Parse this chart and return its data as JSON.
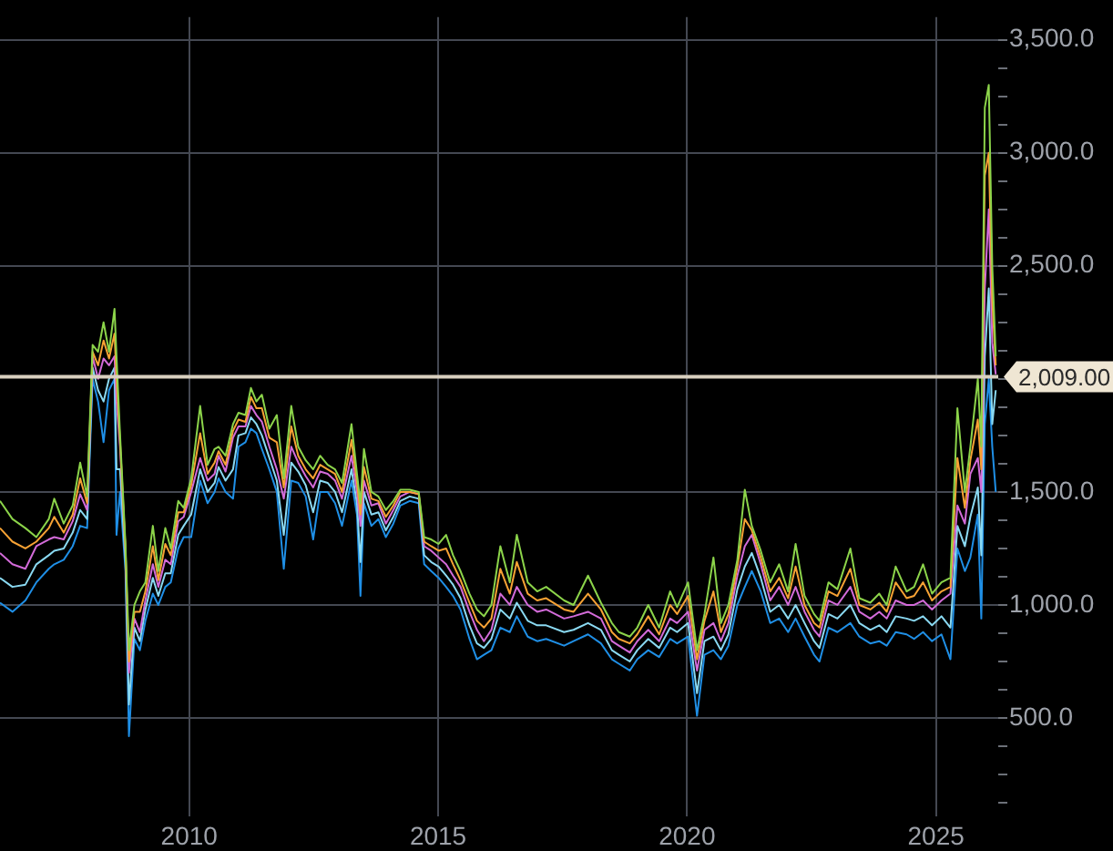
{
  "chart_data": {
    "type": "line",
    "x": [
      2006.2,
      2006.45,
      2006.71,
      2006.93,
      2007.18,
      2007.29,
      2007.48,
      2007.66,
      2007.81,
      2007.95,
      2008.06,
      2008.17,
      2008.28,
      2008.39,
      2008.5,
      2008.54,
      2008.61,
      2008.72,
      2008.79,
      2008.9,
      2009.01,
      2009.12,
      2009.27,
      2009.38,
      2009.52,
      2009.63,
      2009.78,
      2009.89,
      2010.04,
      2010.22,
      2010.37,
      2010.51,
      2010.59,
      2010.73,
      2010.88,
      2010.99,
      2011.13,
      2011.24,
      2011.35,
      2011.46,
      2011.61,
      2011.76,
      2011.9,
      2012.05,
      2012.19,
      2012.34,
      2012.49,
      2012.63,
      2012.78,
      2012.93,
      2013.07,
      2013.26,
      2013.37,
      2013.44,
      2013.51,
      2013.66,
      2013.8,
      2013.95,
      2014.1,
      2014.24,
      2014.43,
      2014.61,
      2014.72,
      2014.86,
      2015.01,
      2015.16,
      2015.3,
      2015.45,
      2015.63,
      2015.78,
      2015.92,
      2016.07,
      2016.25,
      2016.44,
      2016.58,
      2016.8,
      2016.99,
      2017.17,
      2017.53,
      2017.72,
      2018.01,
      2018.27,
      2018.49,
      2018.63,
      2018.85,
      2019.0,
      2019.22,
      2019.44,
      2019.66,
      2019.8,
      2020.02,
      2020.2,
      2020.35,
      2020.53,
      2020.68,
      2020.83,
      2021.01,
      2021.16,
      2021.3,
      2021.48,
      2021.67,
      2021.85,
      2022.03,
      2022.18,
      2022.36,
      2022.55,
      2022.66,
      2022.84,
      2023.02,
      2023.28,
      2023.46,
      2023.68,
      2023.86,
      2024.01,
      2024.19,
      2024.41,
      2024.56,
      2024.74,
      2024.92,
      2025.11,
      2025.29,
      2025.43,
      2025.58,
      2025.69,
      2025.84,
      2025.91,
      2025.98,
      2026.06,
      2026.13,
      2026.2
    ],
    "series": [
      {
        "color": "#8cd44a",
        "values": [
          1460,
          1380,
          1340,
          1300,
          1380,
          1470,
          1360,
          1440,
          1630,
          1480,
          2150,
          2120,
          2250,
          2120,
          2310,
          2100,
          1760,
          1270,
          800,
          1000,
          1060,
          1100,
          1350,
          1150,
          1340,
          1250,
          1460,
          1430,
          1560,
          1880,
          1620,
          1690,
          1700,
          1660,
          1800,
          1850,
          1840,
          1960,
          1900,
          1930,
          1780,
          1840,
          1560,
          1880,
          1700,
          1640,
          1600,
          1660,
          1620,
          1600,
          1540,
          1800,
          1580,
          1450,
          1690,
          1500,
          1480,
          1420,
          1460,
          1510,
          1510,
          1500,
          1300,
          1290,
          1270,
          1310,
          1220,
          1150,
          1050,
          980,
          950,
          1000,
          1260,
          1100,
          1310,
          1100,
          1060,
          1080,
          1020,
          1000,
          1130,
          1010,
          920,
          880,
          860,
          900,
          1000,
          900,
          1060,
          990,
          1100,
          800,
          960,
          1210,
          920,
          1000,
          1200,
          1510,
          1350,
          1240,
          1100,
          1180,
          1060,
          1270,
          1040,
          960,
          930,
          1100,
          1070,
          1250,
          1030,
          1010,
          1050,
          1000,
          1170,
          1060,
          1080,
          1180,
          1050,
          1100,
          1120,
          1870,
          1500,
          1700,
          2000,
          1700,
          3200,
          3300,
          2500,
          2100
        ]
      },
      {
        "color": "#f7a234",
        "values": [
          1340,
          1280,
          1250,
          1280,
          1340,
          1390,
          1320,
          1400,
          1560,
          1450,
          2120,
          2060,
          2170,
          2090,
          2200,
          2000,
          1730,
          1250,
          750,
          970,
          970,
          1060,
          1260,
          1110,
          1270,
          1220,
          1410,
          1410,
          1530,
          1760,
          1580,
          1630,
          1680,
          1620,
          1770,
          1820,
          1810,
          1920,
          1870,
          1870,
          1740,
          1720,
          1520,
          1790,
          1660,
          1600,
          1560,
          1620,
          1600,
          1580,
          1500,
          1730,
          1540,
          1400,
          1610,
          1470,
          1460,
          1390,
          1440,
          1500,
          1500,
          1490,
          1280,
          1260,
          1240,
          1250,
          1180,
          1110,
          1010,
          930,
          900,
          940,
          1160,
          1050,
          1190,
          1050,
          1020,
          1030,
          980,
          970,
          1050,
          980,
          880,
          850,
          830,
          870,
          950,
          870,
          1000,
          960,
          1040,
          760,
          930,
          1060,
          880,
          960,
          1170,
          1380,
          1330,
          1210,
          1060,
          1120,
          1030,
          1170,
          1000,
          920,
          900,
          1060,
          1040,
          1160,
          1000,
          980,
          1010,
          970,
          1100,
          1030,
          1040,
          1100,
          1020,
          1060,
          1080,
          1650,
          1430,
          1640,
          1820,
          1600,
          2900,
          3000,
          2350,
          2060
        ]
      },
      {
        "color": "#d36bd9",
        "values": [
          1230,
          1180,
          1160,
          1260,
          1290,
          1300,
          1290,
          1370,
          1490,
          1420,
          2100,
          2000,
          2090,
          2060,
          2100,
          1900,
          1700,
          1240,
          700,
          940,
          880,
          1020,
          1180,
          1080,
          1200,
          1180,
          1370,
          1390,
          1500,
          1650,
          1550,
          1580,
          1660,
          1590,
          1740,
          1790,
          1790,
          1880,
          1840,
          1810,
          1700,
          1600,
          1470,
          1700,
          1630,
          1570,
          1520,
          1590,
          1580,
          1550,
          1470,
          1660,
          1500,
          1350,
          1550,
          1440,
          1450,
          1360,
          1420,
          1480,
          1500,
          1490,
          1260,
          1240,
          1210,
          1180,
          1130,
          1080,
          970,
          890,
          840,
          890,
          1050,
          1000,
          1080,
          1000,
          970,
          980,
          940,
          950,
          970,
          940,
          840,
          820,
          790,
          840,
          890,
          840,
          940,
          920,
          970,
          710,
          890,
          920,
          840,
          920,
          1130,
          1260,
          1310,
          1180,
          1020,
          1080,
          1000,
          1080,
          970,
          890,
          860,
          1020,
          1000,
          1080,
          970,
          940,
          970,
          940,
          1020,
          1000,
          1000,
          1020,
          980,
          1020,
          1050,
          1440,
          1360,
          1580,
          1650,
          1500,
          2400,
          2750,
          2160,
          2020
        ]
      },
      {
        "color": "#8ad9f2",
        "values": [
          1120,
          1080,
          1090,
          1180,
          1220,
          1240,
          1250,
          1320,
          1420,
          1380,
          2050,
          1950,
          1900,
          2000,
          2050,
          1600,
          1600,
          1190,
          560,
          900,
          840,
          980,
          1120,
          1040,
          1140,
          1140,
          1310,
          1350,
          1400,
          1600,
          1500,
          1540,
          1610,
          1550,
          1600,
          1750,
          1760,
          1830,
          1800,
          1750,
          1650,
          1550,
          1310,
          1630,
          1590,
          1530,
          1410,
          1550,
          1540,
          1500,
          1410,
          1600,
          1450,
          1190,
          1500,
          1400,
          1410,
          1330,
          1390,
          1460,
          1480,
          1470,
          1220,
          1190,
          1170,
          1130,
          1090,
          1030,
          910,
          830,
          810,
          850,
          980,
          940,
          1010,
          930,
          910,
          910,
          880,
          890,
          920,
          890,
          800,
          780,
          750,
          800,
          850,
          810,
          900,
          880,
          920,
          610,
          840,
          860,
          800,
          870,
          1070,
          1170,
          1230,
          1120,
          970,
          1000,
          940,
          1000,
          920,
          840,
          810,
          960,
          940,
          1000,
          920,
          890,
          910,
          880,
          950,
          940,
          930,
          950,
          910,
          950,
          900,
          1350,
          1260,
          1390,
          1520,
          1220,
          2100,
          2400,
          1800,
          1950
        ]
      },
      {
        "color": "#1f8fe6",
        "values": [
          1010,
          970,
          1020,
          1100,
          1160,
          1180,
          1200,
          1260,
          1350,
          1340,
          2000,
          1900,
          1720,
          1950,
          2000,
          1310,
          1500,
          1150,
          420,
          850,
          800,
          930,
          1050,
          1000,
          1080,
          1100,
          1250,
          1300,
          1300,
          1550,
          1450,
          1500,
          1560,
          1500,
          1470,
          1700,
          1720,
          1780,
          1760,
          1690,
          1600,
          1500,
          1160,
          1550,
          1540,
          1480,
          1290,
          1500,
          1500,
          1450,
          1350,
          1550,
          1400,
          1040,
          1450,
          1350,
          1380,
          1300,
          1360,
          1440,
          1460,
          1450,
          1180,
          1150,
          1120,
          1080,
          1040,
          980,
          850,
          760,
          780,
          800,
          900,
          880,
          950,
          860,
          840,
          850,
          820,
          840,
          870,
          830,
          760,
          740,
          710,
          760,
          800,
          770,
          850,
          830,
          860,
          510,
          780,
          800,
          760,
          820,
          1000,
          1080,
          1150,
          1060,
          920,
          940,
          880,
          940,
          860,
          780,
          750,
          900,
          880,
          920,
          860,
          830,
          840,
          820,
          880,
          870,
          850,
          880,
          840,
          870,
          760,
          1250,
          1150,
          1210,
          1400,
          940,
          1800,
          2000,
          1700,
          1500
        ]
      }
    ],
    "xlim": [
      2006.2,
      2026.25
    ],
    "ylim": [
      65,
      3600
    ],
    "xticks": [
      2010,
      2015,
      2020,
      2025
    ],
    "yticks": [
      {
        "value": 125,
        "label": null
      },
      {
        "value": 250,
        "label": null
      },
      {
        "value": 375,
        "label": null
      },
      {
        "value": 500,
        "label": "500.0"
      },
      {
        "value": 625,
        "label": null
      },
      {
        "value": 750,
        "label": null
      },
      {
        "value": 875,
        "label": null
      },
      {
        "value": 1000,
        "label": "1,000.0"
      },
      {
        "value": 1125,
        "label": null
      },
      {
        "value": 1250,
        "label": null
      },
      {
        "value": 1375,
        "label": null
      },
      {
        "value": 1500,
        "label": "1,500.0"
      },
      {
        "value": 1625,
        "label": null
      },
      {
        "value": 1750,
        "label": null
      },
      {
        "value": 1875,
        "label": null
      },
      {
        "value": 2000,
        "label": null
      },
      {
        "value": 2125,
        "label": null
      },
      {
        "value": 2250,
        "label": null
      },
      {
        "value": 2375,
        "label": null
      },
      {
        "value": 2500,
        "label": "2,500.0"
      },
      {
        "value": 2625,
        "label": null
      },
      {
        "value": 2750,
        "label": null
      },
      {
        "value": 2875,
        "label": null
      },
      {
        "value": 3000,
        "label": "3,000.0"
      },
      {
        "value": 3125,
        "label": null
      },
      {
        "value": 3250,
        "label": null
      },
      {
        "value": 3375,
        "label": null
      },
      {
        "value": 3500,
        "label": "3,500.0"
      }
    ],
    "grid": true,
    "ref_lines": [
      {
        "axis": "y",
        "value": 2009,
        "label": "2,009.00",
        "color": "#d9d0bf"
      }
    ]
  }
}
